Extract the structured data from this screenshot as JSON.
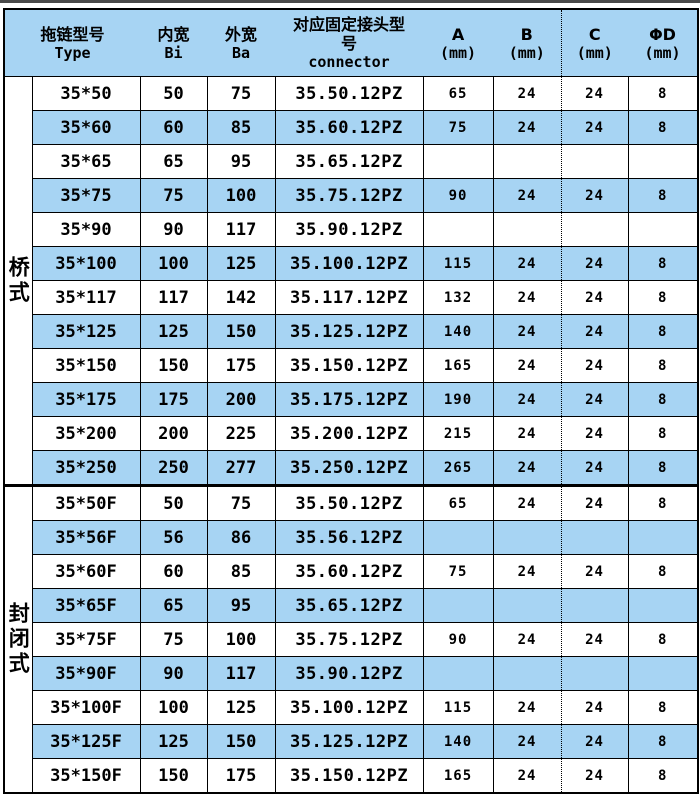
{
  "colors": {
    "row_blue": "#a7d4f3",
    "border_black": "#000000",
    "top_strip_gray": "#4a4a4a",
    "page_bg": "#ffffff"
  },
  "table": {
    "header": {
      "columns": [
        {
          "zh": "拖链型号",
          "en": "Type"
        },
        {
          "zh": "内宽",
          "en": "Bi"
        },
        {
          "zh": "外宽",
          "en": "Ba"
        },
        {
          "zh": "对应固定接头型号",
          "en": "connector"
        },
        {
          "zh": "A",
          "en": "(mm)"
        },
        {
          "zh": "B",
          "en": "(mm)"
        },
        {
          "zh": "C",
          "en": "(mm)"
        },
        {
          "zh": "ΦD",
          "en": "(mm)"
        }
      ]
    },
    "sections": [
      {
        "group": "桥式",
        "rows": [
          [
            "35*50",
            "50",
            "75",
            "35.50.12PZ",
            "65",
            "24",
            "24",
            "8"
          ],
          [
            "35*60",
            "60",
            "85",
            "35.60.12PZ",
            "75",
            "24",
            "24",
            "8"
          ],
          [
            "35*65",
            "65",
            "95",
            "35.65.12PZ",
            "",
            "",
            "",
            ""
          ],
          [
            "35*75",
            "75",
            "100",
            "35.75.12PZ",
            "90",
            "24",
            "24",
            "8"
          ],
          [
            "35*90",
            "90",
            "117",
            "35.90.12PZ",
            "",
            "",
            "",
            ""
          ],
          [
            "35*100",
            "100",
            "125",
            "35.100.12PZ",
            "115",
            "24",
            "24",
            "8"
          ],
          [
            "35*117",
            "117",
            "142",
            "35.117.12PZ",
            "132",
            "24",
            "24",
            "8"
          ],
          [
            "35*125",
            "125",
            "150",
            "35.125.12PZ",
            "140",
            "24",
            "24",
            "8"
          ],
          [
            "35*150",
            "150",
            "175",
            "35.150.12PZ",
            "165",
            "24",
            "24",
            "8"
          ],
          [
            "35*175",
            "175",
            "200",
            "35.175.12PZ",
            "190",
            "24",
            "24",
            "8"
          ],
          [
            "35*200",
            "200",
            "225",
            "35.200.12PZ",
            "215",
            "24",
            "24",
            "8"
          ],
          [
            "35*250",
            "250",
            "277",
            "35.250.12PZ",
            "265",
            "24",
            "24",
            "8"
          ]
        ]
      },
      {
        "group": "封闭式",
        "rows": [
          [
            "35*50F",
            "50",
            "75",
            "35.50.12PZ",
            "65",
            "24",
            "24",
            "8"
          ],
          [
            "35*56F",
            "56",
            "86",
            "35.56.12PZ",
            "",
            "",
            "",
            ""
          ],
          [
            "35*60F",
            "60",
            "85",
            "35.60.12PZ",
            "75",
            "24",
            "24",
            "8"
          ],
          [
            "35*65F",
            "65",
            "95",
            "35.65.12PZ",
            "",
            "",
            "",
            ""
          ],
          [
            "35*75F",
            "75",
            "100",
            "35.75.12PZ",
            "90",
            "24",
            "24",
            "8"
          ],
          [
            "35*90F",
            "90",
            "117",
            "35.90.12PZ",
            "",
            "",
            "",
            ""
          ],
          [
            "35*100F",
            "100",
            "125",
            "35.100.12PZ",
            "115",
            "24",
            "24",
            "8"
          ],
          [
            "35*125F",
            "125",
            "150",
            "35.125.12PZ",
            "140",
            "24",
            "24",
            "8"
          ],
          [
            "35*150F",
            "150",
            "175",
            "35.150.12PZ",
            "165",
            "24",
            "24",
            "8"
          ]
        ]
      }
    ]
  }
}
